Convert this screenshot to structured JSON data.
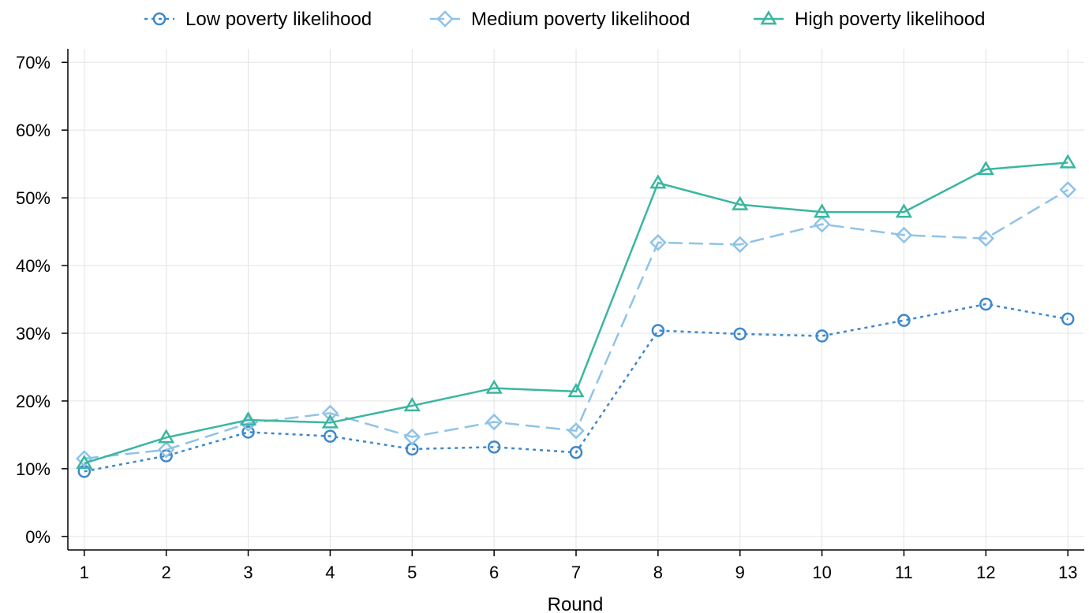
{
  "chart_data": {
    "type": "line",
    "xlabel": "Round",
    "ylabel": "",
    "x": [
      1,
      2,
      3,
      4,
      5,
      6,
      7,
      8,
      9,
      10,
      11,
      12,
      13
    ],
    "xlim": [
      0.8,
      13.2
    ],
    "ylim": [
      -0.02,
      0.72
    ],
    "yticks": [
      0,
      0.1,
      0.2,
      0.3,
      0.4,
      0.5,
      0.6,
      0.7
    ],
    "ytick_labels": [
      "0%",
      "10%",
      "20%",
      "30%",
      "40%",
      "50%",
      "60%",
      "70%"
    ],
    "xtick_labels": [
      "1",
      "2",
      "3",
      "4",
      "5",
      "6",
      "7",
      "8",
      "9",
      "10",
      "11",
      "12",
      "13"
    ],
    "grid": true,
    "legend_position": "top",
    "series": [
      {
        "name": "Low poverty likelihood",
        "color": "#3d88cb",
        "marker": "circle",
        "dash": "dotted",
        "values": [
          0.096,
          0.119,
          0.154,
          0.148,
          0.129,
          0.132,
          0.124,
          0.304,
          0.299,
          0.296,
          0.319,
          0.343,
          0.321
        ]
      },
      {
        "name": "Medium poverty likelihood",
        "color": "#8fc3e8",
        "marker": "diamond",
        "dash": "dashed",
        "values": [
          0.115,
          0.128,
          0.167,
          0.182,
          0.147,
          0.169,
          0.156,
          0.434,
          0.431,
          0.461,
          0.445,
          0.44,
          0.512
        ]
      },
      {
        "name": "High poverty likelihood",
        "color": "#3ab6a0",
        "marker": "triangle",
        "dash": "solid",
        "values": [
          0.108,
          0.146,
          0.172,
          0.168,
          0.193,
          0.219,
          0.214,
          0.522,
          0.49,
          0.479,
          0.479,
          0.542,
          0.552
        ]
      }
    ]
  }
}
